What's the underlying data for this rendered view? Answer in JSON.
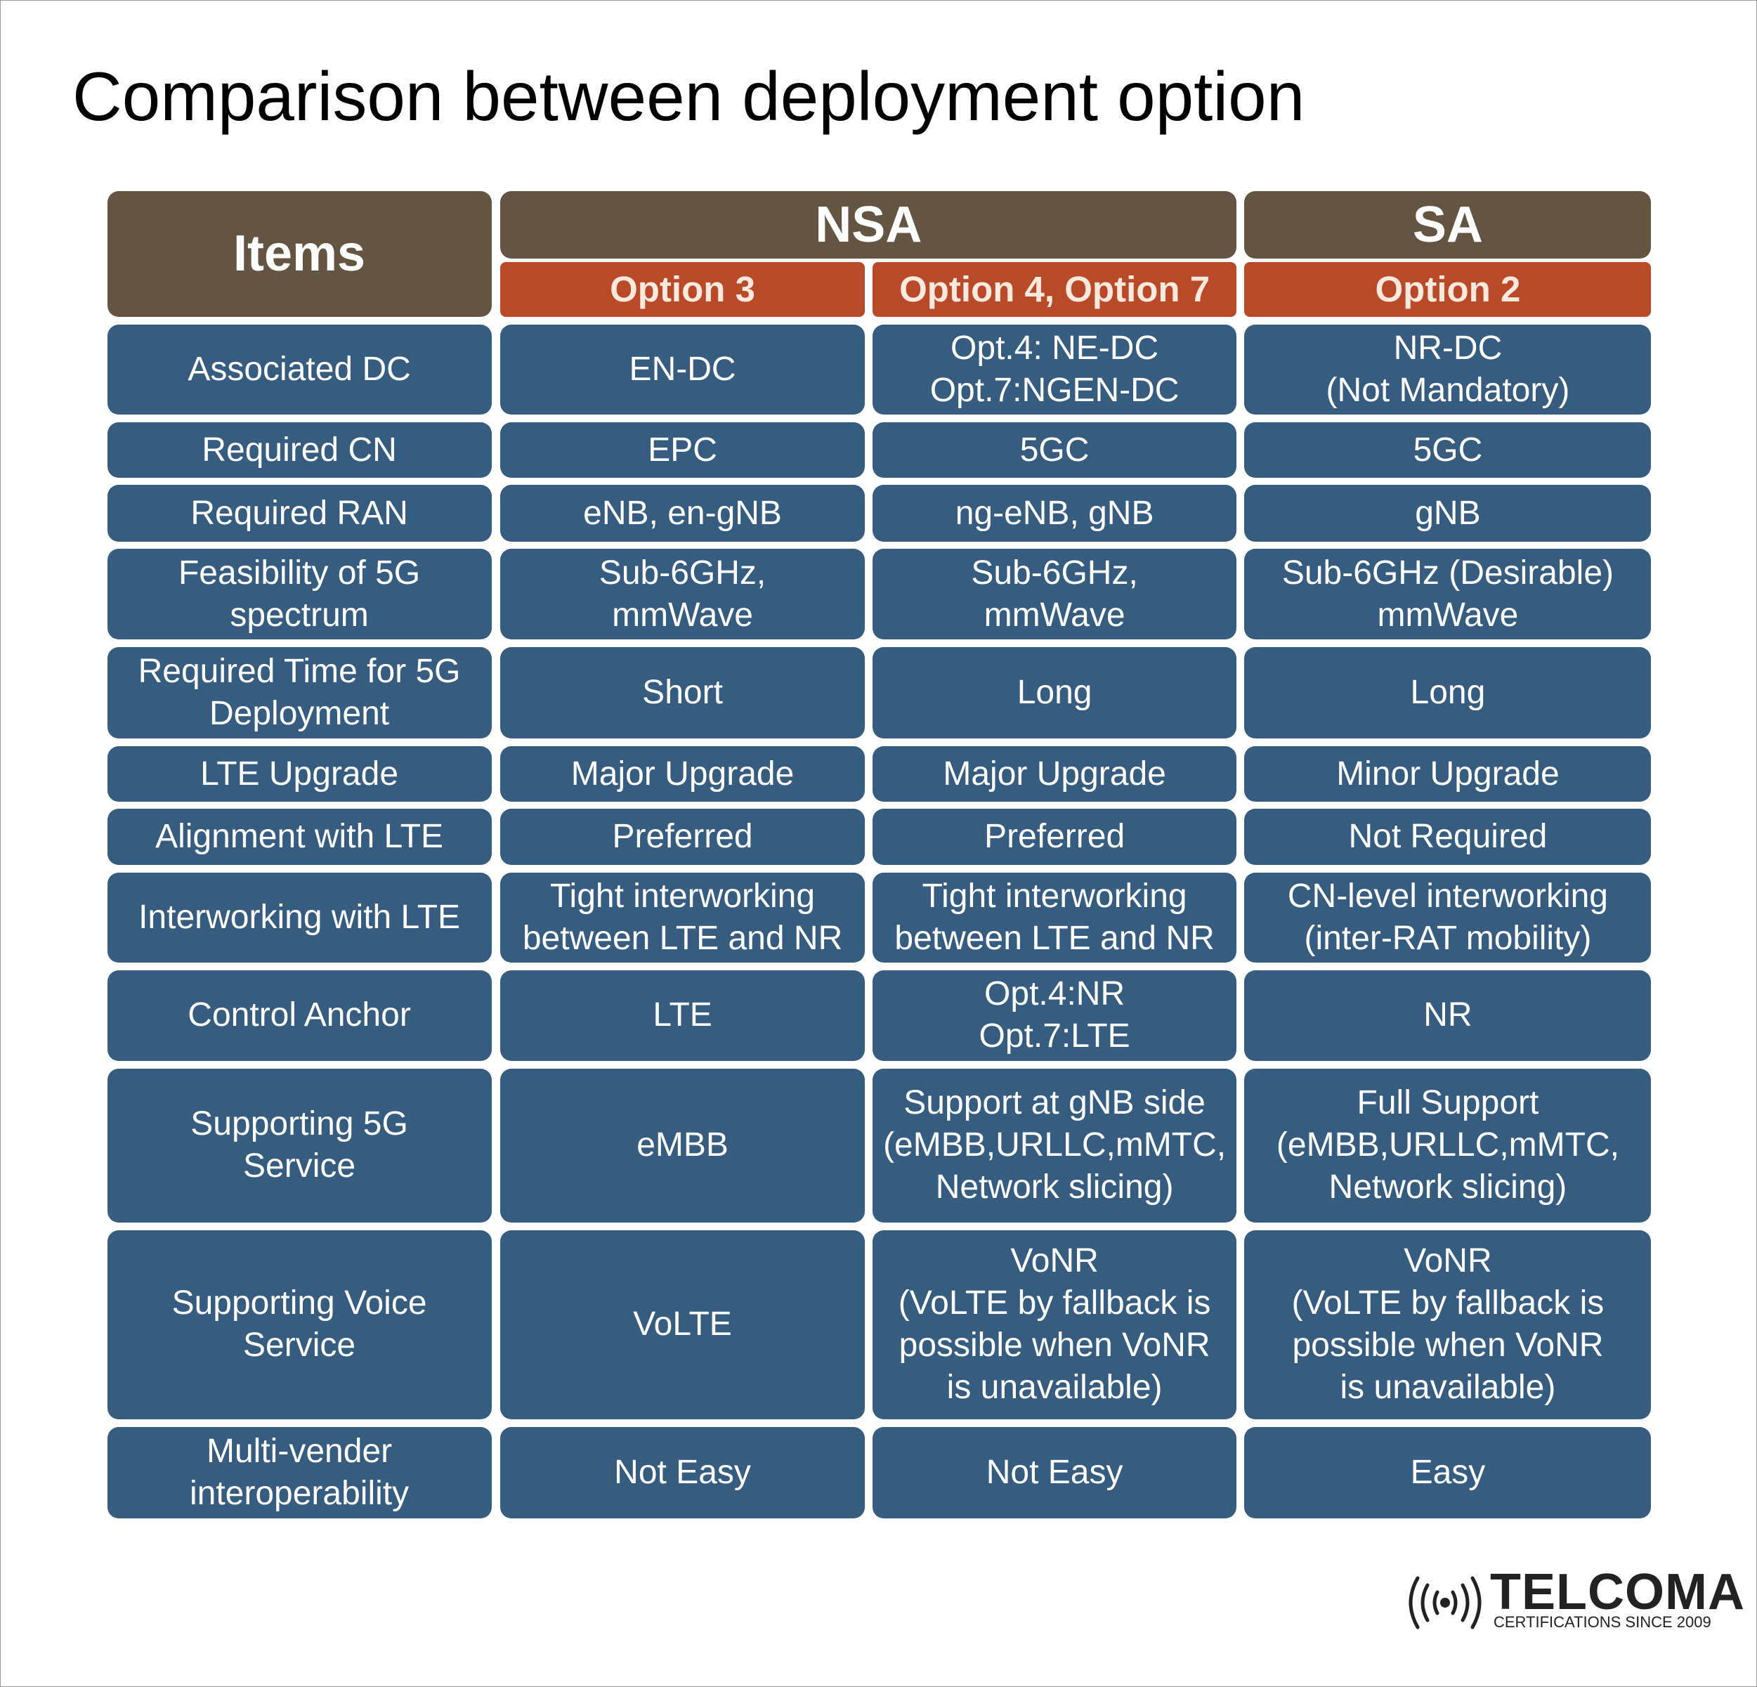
{
  "title": "Comparison between deployment option",
  "table": {
    "header": {
      "items": "Items",
      "groups": [
        "NSA",
        "SA"
      ],
      "options": [
        "Option 3",
        "Option 4, Option 7",
        "Option 2"
      ]
    },
    "rows": [
      {
        "label": "Associated DC",
        "cells": [
          "EN-DC",
          "Opt.4: NE-DC\nOpt.7:NGEN-DC",
          "NR-DC\n(Not Mandatory)"
        ]
      },
      {
        "label": "Required CN",
        "cells": [
          "EPC",
          "5GC",
          "5GC"
        ]
      },
      {
        "label": "Required RAN",
        "cells": [
          "eNB, en-gNB",
          "ng-eNB, gNB",
          "gNB"
        ]
      },
      {
        "label": "Feasibility of 5G\nspectrum",
        "cells": [
          "Sub-6GHz,\nmmWave",
          "Sub-6GHz,\nmmWave",
          "Sub-6GHz (Desirable)\nmmWave"
        ]
      },
      {
        "label": "Required Time for 5G\nDeployment",
        "cells": [
          "Short",
          "Long",
          "Long"
        ]
      },
      {
        "label": "LTE Upgrade",
        "cells": [
          "Major Upgrade",
          "Major Upgrade",
          "Minor Upgrade"
        ]
      },
      {
        "label": "Alignment with LTE",
        "cells": [
          "Preferred",
          "Preferred",
          "Not Required"
        ]
      },
      {
        "label": "Interworking with LTE",
        "cells": [
          "Tight interworking\nbetween LTE and NR",
          "Tight interworking\nbetween LTE and NR",
          "CN-level interworking\n(inter-RAT mobility)"
        ]
      },
      {
        "label": "Control Anchor",
        "cells": [
          "LTE",
          "Opt.4:NR\nOpt.7:LTE",
          "NR"
        ]
      },
      {
        "label": "Supporting 5G\nService",
        "cells": [
          "eMBB",
          "Support at gNB side\n(eMBB,URLLC,mMTC,\nNetwork slicing)",
          "Full Support\n(eMBB,URLLC,mMTC,\nNetwork slicing)"
        ]
      },
      {
        "label": "Supporting Voice\nService",
        "cells": [
          "VoLTE",
          "VoNR\n(VoLTE by fallback is\npossible when VoNR\nis unavailable)",
          "VoNR\n(VoLTE by fallback is\npossible when VoNR\nis unavailable)"
        ]
      },
      {
        "label": "Multi-vender\ninteroperability",
        "cells": [
          "Not Easy",
          "Not Easy",
          "Easy"
        ]
      }
    ]
  },
  "logo": {
    "name": "TELCOMA",
    "tagline": "CERTIFICATIONS SINCE 2009"
  }
}
